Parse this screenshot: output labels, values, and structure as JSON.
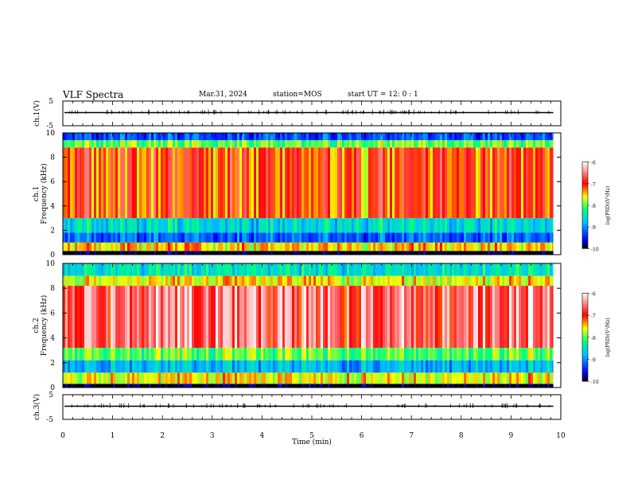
{
  "header": {
    "title": "VLF Spectra",
    "date": "Mar.31, 2024",
    "station": "station=MOS",
    "start": "start UT =  12: 0  : 1"
  },
  "chart_data": [
    {
      "type": "line",
      "panel": "ch1-waveform",
      "ylabel": "ch.1(V)",
      "yticks": [
        "5",
        "-5"
      ],
      "ylim": [
        -5,
        5
      ],
      "baseline": 0
    },
    {
      "type": "heatmap",
      "panel": "ch1-spectrogram",
      "ylabel": "ch.1\nFrequency (kHz)",
      "ylabel_line1": "ch.1",
      "ylabel_line2": "Frequency (kHz)",
      "yticks": [
        "0",
        "2",
        "4",
        "6",
        "8",
        "10"
      ],
      "ylim": [
        0,
        10
      ],
      "colorbar": {
        "label": "log(PSD)(V²/Hz)",
        "ticks": [
          "-6",
          "-7",
          "-8",
          "-9",
          "-10"
        ],
        "range": [
          -10,
          -6
        ],
        "colors": [
          "#000000",
          "#0000ff",
          "#00bfff",
          "#00ff7f",
          "#ffff00",
          "#ff0000",
          "#ffffff"
        ]
      },
      "bands_khz": [
        {
          "from": 0,
          "to": 0.3,
          "level": -10
        },
        {
          "from": 0.3,
          "to": 1.0,
          "level": -7.5
        },
        {
          "from": 1.0,
          "to": 1.8,
          "level": -9.2
        },
        {
          "from": 1.8,
          "to": 3.0,
          "level": -8.6
        },
        {
          "from": 3.0,
          "to": 8.8,
          "level": -7.1
        },
        {
          "from": 8.8,
          "to": 9.4,
          "level": -8.0
        },
        {
          "from": 9.4,
          "to": 10,
          "level": -9.3
        }
      ]
    },
    {
      "type": "heatmap",
      "panel": "ch2-spectrogram",
      "ylabel_line1": "ch.2",
      "ylabel_line2": "Frequency (kHz)",
      "yticks": [
        "0",
        "2",
        "4",
        "6",
        "8",
        "10"
      ],
      "ylim": [
        0,
        10
      ],
      "colorbar": {
        "label": "log(PSD)(V²/Hz)",
        "ticks": [
          "-6",
          "-7",
          "-8",
          "-9",
          "-10"
        ],
        "range": [
          -10,
          -6
        ],
        "colors": [
          "#000000",
          "#0000ff",
          "#00bfff",
          "#00ff7f",
          "#ffff00",
          "#ff0000",
          "#ffffff"
        ]
      },
      "bands_khz": [
        {
          "from": 0,
          "to": 0.3,
          "level": -10
        },
        {
          "from": 0.3,
          "to": 1.2,
          "level": -7.6
        },
        {
          "from": 1.2,
          "to": 2.2,
          "level": -8.8
        },
        {
          "from": 2.2,
          "to": 3.2,
          "level": -8.0
        },
        {
          "from": 3.2,
          "to": 8.2,
          "level": -6.6
        },
        {
          "from": 8.2,
          "to": 9.0,
          "level": -7.6
        },
        {
          "from": 9.0,
          "to": 10,
          "level": -8.5
        }
      ]
    },
    {
      "type": "line",
      "panel": "ch3-waveform",
      "ylabel": "ch.3(V)",
      "yticks": [
        "5",
        "-5"
      ],
      "ylim": [
        -5,
        5
      ],
      "baseline": 0
    }
  ],
  "xaxis": {
    "label": "Time (min)",
    "ticks": [
      "0",
      "1",
      "2",
      "3",
      "4",
      "5",
      "6",
      "7",
      "8",
      "9",
      "10"
    ],
    "xlim": [
      0,
      10
    ],
    "data_end": 9.85
  }
}
